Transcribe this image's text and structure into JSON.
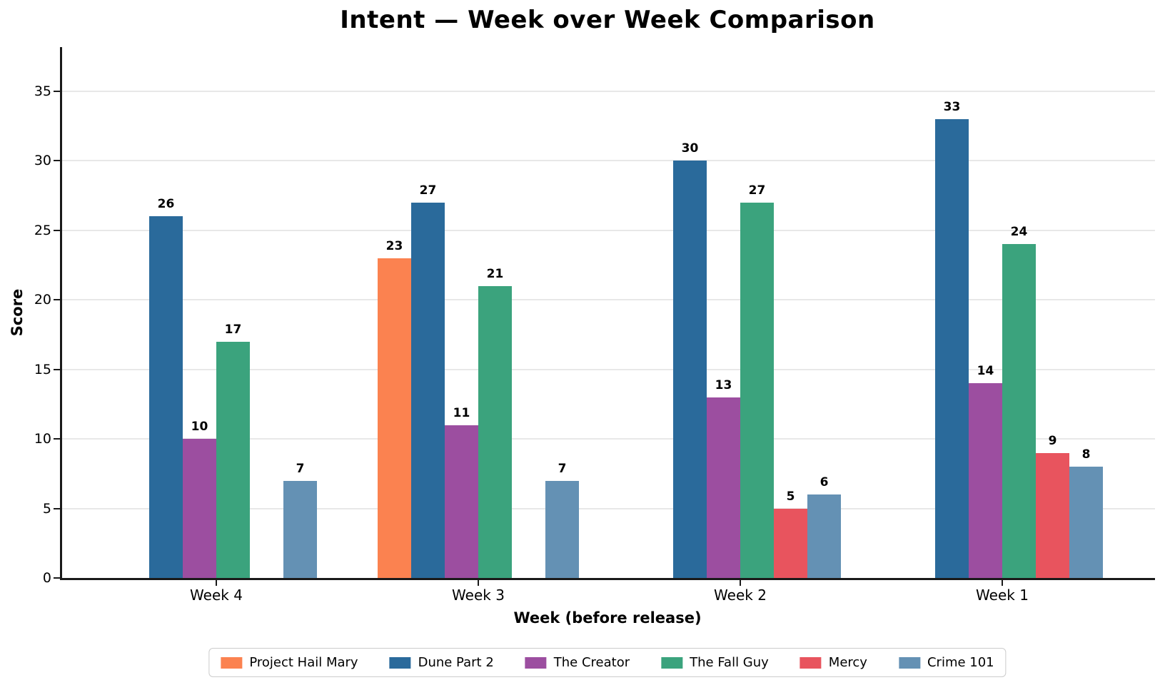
{
  "title": "Intent — Week over Week Comparison",
  "chart_data": {
    "type": "bar",
    "title": "Intent — Week over Week Comparison",
    "xlabel": "Week (before release)",
    "ylabel": "Score",
    "categories": [
      "Week 4",
      "Week 3",
      "Week 2",
      "Week 1"
    ],
    "series": [
      {
        "name": "Project Hail Mary",
        "color": "#FB8250",
        "values": [
          0,
          23,
          0,
          0
        ]
      },
      {
        "name": "Dune Part 2",
        "color": "#2A6A9B",
        "values": [
          26,
          27,
          30,
          33
        ]
      },
      {
        "name": "The Creator",
        "color": "#9C4EA0",
        "values": [
          10,
          11,
          13,
          14
        ]
      },
      {
        "name": "The Fall Guy",
        "color": "#3BA37D",
        "values": [
          17,
          21,
          27,
          24
        ]
      },
      {
        "name": "Mercy",
        "color": "#E8545E",
        "values": [
          0,
          0,
          5,
          9
        ]
      },
      {
        "name": "Crime 101",
        "color": "#6491B4",
        "values": [
          7,
          7,
          6,
          8
        ]
      }
    ],
    "yticks": [
      0,
      5,
      10,
      15,
      20,
      25,
      30,
      35
    ],
    "ylim": [
      0,
      38
    ],
    "grid": true,
    "grid_color": "#e8e8e8",
    "spine_color": "#1a1a1a",
    "background": "#ffffff",
    "legend_position": "bottom",
    "bar_value_labels": true
  }
}
